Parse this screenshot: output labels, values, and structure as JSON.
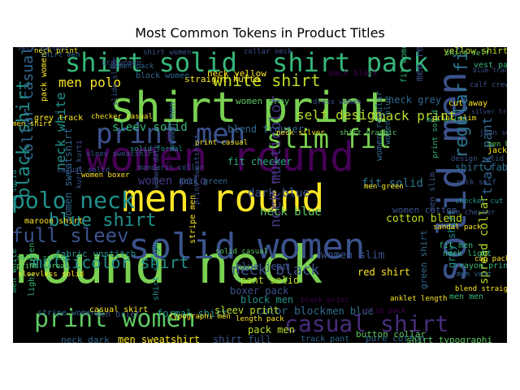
{
  "chart_data": {
    "type": "wordcloud",
    "title": "Most Common Tokens in Product Titles",
    "words": [
      {
        "text": "round neck",
        "color": "#7ad151"
      },
      {
        "text": "men round",
        "color": "#fde725"
      },
      {
        "text": "women round",
        "color": "#440154"
      },
      {
        "text": "shirt print",
        "color": "#7ad151"
      },
      {
        "text": "solid women",
        "color": "#3b528b"
      },
      {
        "text": "solid men",
        "color": "#3b528b"
      },
      {
        "text": "shirt solid",
        "color": "#35b779"
      },
      {
        "text": "shirt pack",
        "color": "#35b779"
      },
      {
        "text": "print men",
        "color": "#3b528b"
      },
      {
        "text": "slim fit",
        "color": "#7ad151"
      },
      {
        "text": "print women",
        "color": "#5ec962"
      },
      {
        "text": "casual shirt",
        "color": "#472d7b"
      },
      {
        "text": "polo neck",
        "color": "#21918c"
      },
      {
        "text": "black shirt",
        "color": "#21918c"
      },
      {
        "text": "full sleev",
        "color": "#3b528b"
      },
      {
        "text": "blue shirt",
        "color": "#21918c"
      },
      {
        "text": "multicolor shirt",
        "color": "#21918c"
      },
      {
        "text": "neck black",
        "color": "#3b528b"
      },
      {
        "text": "white shirt",
        "color": "#c2df23"
      },
      {
        "text": "collar casual",
        "color": "#31688e"
      },
      {
        "text": "regular fit",
        "color": "#2c728e"
      },
      {
        "text": "neck multicolor",
        "color": "#443983"
      },
      {
        "text": "neck white",
        "color": "#21918c"
      },
      {
        "text": "men polo",
        "color": "#fde725"
      },
      {
        "text": "self design",
        "color": "#b5de2b"
      },
      {
        "text": "pack print",
        "color": "#b5de2b"
      },
      {
        "text": "neck blue",
        "color": "#5ec962"
      },
      {
        "text": "fit solid",
        "color": "#2c728e"
      },
      {
        "text": "women polo",
        "color": "#443983"
      },
      {
        "text": "dark blue",
        "color": "#3b528b"
      },
      {
        "text": "sleev solid",
        "color": "#35b779"
      },
      {
        "text": "fit checker",
        "color": "#28ae80"
      },
      {
        "text": "blend trouser",
        "color": "#31688e"
      },
      {
        "text": "neck grey",
        "color": "#31688e"
      },
      {
        "text": "men regular",
        "color": "#3b528b"
      },
      {
        "text": "spread collar",
        "color": "#b5de2b"
      },
      {
        "text": "track pant",
        "color": "#31688e"
      },
      {
        "text": "cotton blend",
        "color": "#c2df23"
      },
      {
        "text": "women slim",
        "color": "#3b528b"
      },
      {
        "text": "red shirt",
        "color": "#fde725"
      },
      {
        "text": "color block",
        "color": "#31688e"
      },
      {
        "text": "men blue",
        "color": "#2c728e"
      },
      {
        "text": "pack men",
        "color": "#b5de2b"
      },
      {
        "text": "boxer pack",
        "color": "#3b528b"
      },
      {
        "text": "block men",
        "color": "#21918c"
      },
      {
        "text": "pant solid",
        "color": "#b5de2b"
      },
      {
        "text": "blue jean",
        "color": "#3b528b"
      },
      {
        "text": "shirt full",
        "color": "#3b528b"
      },
      {
        "text": "men sweatshirt",
        "color": "#fde725"
      },
      {
        "text": "neck dark",
        "color": "#31688e"
      },
      {
        "text": "formal shirt",
        "color": "#21918c"
      },
      {
        "text": "sleev print",
        "color": "#b5de2b"
      },
      {
        "text": "women sweatshirt",
        "color": "#31688e"
      },
      {
        "text": "stripe women",
        "color": "#31688e"
      },
      {
        "text": "fabric unstitch",
        "color": "#21918c"
      },
      {
        "text": "yellow shirt",
        "color": "#c2df23"
      },
      {
        "text": "pack women",
        "color": "#fde725"
      },
      {
        "text": "straight kurta",
        "color": "#fde725"
      },
      {
        "text": "neck yellow",
        "color": "#fde725"
      },
      {
        "text": "women grey",
        "color": "#5ec962"
      },
      {
        "text": "shirt fabric",
        "color": "#2c728e"
      },
      {
        "text": "women cotton",
        "color": "#3b528b"
      },
      {
        "text": "women regular",
        "color": "#31688e"
      },
      {
        "text": "shirt stripe",
        "color": "#21918c"
      },
      {
        "text": "men slim",
        "color": "#3b528b"
      },
      {
        "text": "green shirt",
        "color": "#31688e"
      },
      {
        "text": "grey shirt",
        "color": "#21918c"
      },
      {
        "text": "pure cotton",
        "color": "#31688e"
      },
      {
        "text": "shirt typographi",
        "color": "#5ec962"
      },
      {
        "text": "women men",
        "color": "#31688e"
      },
      {
        "text": "checker cut",
        "color": "#21918c"
      },
      {
        "text": "pack self",
        "color": "#3b528b"
      },
      {
        "text": "cut away",
        "color": "#fde725"
      },
      {
        "text": "fit women",
        "color": "#35b779"
      },
      {
        "text": "fit men",
        "color": "#35b779"
      },
      {
        "text": "neck light",
        "color": "#35b779"
      },
      {
        "text": "men men",
        "color": "#35b779"
      },
      {
        "text": "pack black",
        "color": "#440154"
      },
      {
        "text": "neck green",
        "color": "#31688e"
      },
      {
        "text": "neck red",
        "color": "#472d7b"
      },
      {
        "text": "maroon shirt",
        "color": "#fde725"
      },
      {
        "text": "men solid",
        "color": "#21918c"
      },
      {
        "text": "solid spread",
        "color": "#35b779"
      },
      {
        "text": "rayon print",
        "color": "#35b779"
      },
      {
        "text": "vest pack",
        "color": "#35b779"
      },
      {
        "text": "calf crew",
        "color": "#3b528b"
      },
      {
        "text": "cap pack",
        "color": "#fde725"
      },
      {
        "text": "blend straight",
        "color": "#fde725"
      },
      {
        "text": "anklet length",
        "color": "#fde725"
      },
      {
        "text": "length pack",
        "color": "#fde725"
      },
      {
        "text": "typographi men",
        "color": "#fde725"
      },
      {
        "text": "solid casual",
        "color": "#5ec962"
      },
      {
        "text": "shirt self",
        "color": "#5ec962"
      },
      {
        "text": "jacket full",
        "color": "#fde725"
      },
      {
        "text": "women blue",
        "color": "#2c728e"
      },
      {
        "text": "block women",
        "color": "#31688e"
      },
      {
        "text": "men shirt",
        "color": "#fde725"
      },
      {
        "text": "grey track",
        "color": "#fde725"
      },
      {
        "text": "casual skirt",
        "color": "#fde725"
      },
      {
        "text": "women boxer",
        "color": "#fde725"
      },
      {
        "text": "men vest",
        "color": "#31688e"
      },
      {
        "text": "light green",
        "color": "#35b779"
      },
      {
        "text": "men brief",
        "color": "#3b528b"
      },
      {
        "text": "stripe men",
        "color": "#fde725"
      },
      {
        "text": "button collar",
        "color": "#5ec962"
      },
      {
        "text": "track pant",
        "color": "#31688e"
      },
      {
        "text": "blue track",
        "color": "#3b528b"
      },
      {
        "text": "silver tripad",
        "color": "#3b528b"
      },
      {
        "text": "bra women",
        "color": "#3b528b"
      },
      {
        "text": "men white",
        "color": "#35b779"
      },
      {
        "text": "women pack",
        "color": "#31688e"
      },
      {
        "text": "men print",
        "color": "#35b779"
      },
      {
        "text": "print solid",
        "color": "#35b779"
      },
      {
        "text": "shirt men",
        "color": "#31688e"
      },
      {
        "text": "neck print",
        "color": "#fde725"
      },
      {
        "text": "men black",
        "color": "#5ec962"
      },
      {
        "text": "shirt women",
        "color": "#3b528b"
      },
      {
        "text": "solid pack",
        "color": "#440154"
      },
      {
        "text": "block print",
        "color": "#440154"
      },
      {
        "text": "collar neck",
        "color": "#3b528b"
      },
      {
        "text": "neck maroon",
        "color": "#3b528b"
      },
      {
        "text": "men green",
        "color": "#fde725"
      },
      {
        "text": "men checker",
        "color": "#3b528b"
      },
      {
        "text": "slide slide",
        "color": "#3b528b"
      },
      {
        "text": "print slim",
        "color": "#fde725"
      },
      {
        "text": "sandal pack",
        "color": "#fde725"
      },
      {
        "text": "women dark",
        "color": "#3b528b"
      },
      {
        "text": "sleev sweatshirt",
        "color": "#3b528b"
      },
      {
        "text": "print casual",
        "color": "#fde725"
      },
      {
        "text": "solid formal",
        "color": "#21918c"
      },
      {
        "text": "mandarin collar",
        "color": "#3b528b"
      },
      {
        "text": "women top",
        "color": "#440154"
      },
      {
        "text": "dress women",
        "color": "#3b528b"
      },
      {
        "text": "neck silver",
        "color": "#fde725"
      },
      {
        "text": "shirt graphic",
        "color": "#5ec962"
      },
      {
        "text": "jean solid",
        "color": "#3b528b"
      },
      {
        "text": "casual solid",
        "color": "#3b528b"
      },
      {
        "text": "checker casual",
        "color": "#fde725"
      },
      {
        "text": "sleevless solid",
        "color": "#fde725"
      },
      {
        "text": "print sweatshirt",
        "color": "#3b528b"
      },
      {
        "text": "design solid",
        "color": "#3b528b"
      },
      {
        "text": "kurta kurti",
        "color": "#3b528b"
      },
      {
        "text": "print spread",
        "color": "#5ec962"
      }
    ]
  }
}
